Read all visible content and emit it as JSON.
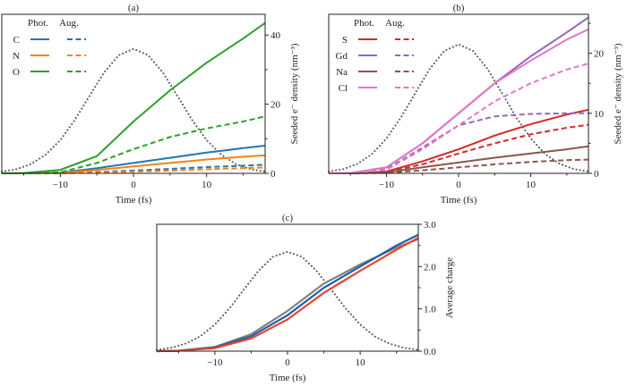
{
  "chart_data": [
    {
      "type": "line",
      "title": "(a)",
      "xlabel": "Time (fs)",
      "ylabel": "Seeded e⁻ density (nm⁻³)",
      "xlim": [
        -18,
        18
      ],
      "ylim": [
        0,
        46
      ],
      "xticks": [
        -10,
        0,
        10
      ],
      "xminor": [
        -15,
        -5,
        5,
        15
      ],
      "yticks": [
        0,
        20,
        40
      ],
      "yminor": [
        10,
        30
      ],
      "ytick_labels": [
        "0",
        "20",
        "40"
      ],
      "xtick_labels": [
        "−10",
        "0",
        "10"
      ],
      "yaxis_side": "right",
      "legend": {
        "placement": "top-left",
        "header_phot": "Phot.",
        "header_aug": "Aug."
      },
      "x": [
        -18,
        -15,
        -10,
        -5,
        0,
        5,
        10,
        15,
        18
      ],
      "series": [
        {
          "name": "C",
          "color": "#1f77b4",
          "phot": [
            0,
            0,
            0.2,
            1.5,
            3,
            4.5,
            6,
            7.3,
            8
          ],
          "aug": [
            0,
            0,
            0.05,
            0.4,
            0.8,
            1.3,
            1.8,
            2.2,
            2.5
          ]
        },
        {
          "name": "N",
          "color": "#ff7f0e",
          "phot": [
            0,
            0,
            0.1,
            1,
            2,
            3,
            4,
            4.8,
            5.2
          ],
          "aug": [
            0,
            0,
            0.03,
            0.2,
            0.5,
            0.8,
            1.2,
            1.5,
            1.7
          ]
        },
        {
          "name": "O",
          "color": "#2ca02c",
          "phot": [
            0,
            0.1,
            1,
            5,
            15,
            24,
            32,
            39,
            43.5
          ],
          "aug": [
            0,
            0,
            0.3,
            3,
            7,
            10.5,
            13,
            15,
            16.5
          ]
        }
      ],
      "pulse": {
        "x": [
          -18,
          -16,
          -14,
          -12,
          -10,
          -8,
          -6,
          -4,
          -2,
          0,
          2,
          4,
          6,
          8,
          10,
          12,
          14,
          16,
          18
        ],
        "y": [
          0.5,
          1.2,
          2.7,
          5.4,
          9.6,
          15.5,
          22.4,
          29.2,
          34.2,
          36,
          34.2,
          29.2,
          22.4,
          15.5,
          9.6,
          5.4,
          2.7,
          1.2,
          0.5
        ]
      }
    },
    {
      "type": "line",
      "title": "(b)",
      "xlabel": "Time (fs)",
      "ylabel": "Seeded e⁻ density (nm⁻³)",
      "xlim": [
        -18,
        18
      ],
      "ylim": [
        0,
        26.5
      ],
      "xticks": [
        -10,
        0,
        10
      ],
      "xminor": [
        -15,
        -5,
        5,
        15
      ],
      "yticks": [
        0,
        10,
        20
      ],
      "yminor": [
        5,
        15,
        25
      ],
      "ytick_labels": [
        "0",
        "10",
        "20"
      ],
      "xtick_labels": [
        "−10",
        "0",
        "10"
      ],
      "yaxis_side": "right",
      "legend": {
        "placement": "top-left",
        "header_phot": "Phot.",
        "header_aug": "Aug."
      },
      "x": [
        -18,
        -15,
        -10,
        -5,
        0,
        5,
        10,
        15,
        18
      ],
      "series": [
        {
          "name": "S",
          "color": "#d62728",
          "phot": [
            0,
            0,
            0.3,
            2,
            4,
            6.3,
            8.2,
            9.8,
            10.6
          ],
          "aug": [
            0,
            0,
            0.2,
            1.5,
            3.3,
            5,
            6.5,
            7.6,
            8.1
          ]
        },
        {
          "name": "Gd",
          "color": "#9467bd",
          "phot": [
            0,
            0.05,
            1,
            5,
            10,
            15,
            19.5,
            23.5,
            26
          ],
          "aug": [
            0,
            0.03,
            0.7,
            4.3,
            8,
            9.5,
            9.9,
            10,
            10
          ]
        },
        {
          "name": "Na",
          "color": "#8c564b",
          "phot": [
            0,
            0,
            0.15,
            1,
            1.8,
            2.6,
            3.3,
            4,
            4.5
          ],
          "aug": [
            0,
            0,
            0.08,
            0.5,
            1,
            1.5,
            1.9,
            2.2,
            2.3
          ]
        },
        {
          "name": "Cl",
          "color": "#e377c2",
          "phot": [
            0,
            0.05,
            1,
            5,
            10,
            15,
            18.8,
            22.3,
            24
          ],
          "aug": [
            0,
            0.03,
            0.6,
            4,
            8,
            12,
            15,
            17.3,
            18.3
          ]
        }
      ],
      "pulse": {
        "x": [
          -18,
          -16,
          -14,
          -12,
          -10,
          -8,
          -6,
          -4,
          -2,
          0,
          2,
          4,
          6,
          8,
          10,
          12,
          14,
          16,
          18
        ],
        "y": [
          0.3,
          0.7,
          1.6,
          3.2,
          5.8,
          9.3,
          13.4,
          17.4,
          20.4,
          21.5,
          20.4,
          17.4,
          13.4,
          9.3,
          5.8,
          3.2,
          1.6,
          0.7,
          0.3
        ]
      }
    },
    {
      "type": "line",
      "title": "(c)",
      "xlabel": "Time (fs)",
      "ylabel": "Average charge",
      "xlim": [
        -18,
        18
      ],
      "ylim": [
        0,
        3
      ],
      "xticks": [
        -10,
        0,
        10
      ],
      "xminor": [
        -15,
        -5,
        5,
        15
      ],
      "yticks": [
        0,
        1,
        2,
        3
      ],
      "yminor": [
        0.5,
        1.5,
        2.5
      ],
      "ytick_labels": [
        "0.0",
        "1.0",
        "2.0",
        "3.0"
      ],
      "xtick_labels": [
        "−10",
        "0",
        "10"
      ],
      "yaxis_side": "right",
      "x": [
        -18,
        -15,
        -10,
        -5,
        0,
        5,
        10,
        15,
        18
      ],
      "series": [
        {
          "color": "#808080",
          "values": [
            0,
            0.01,
            0.1,
            0.4,
            0.95,
            1.6,
            2.05,
            2.45,
            2.65
          ]
        },
        {
          "color": "#1f5fa8",
          "values": [
            0,
            0.01,
            0.09,
            0.35,
            0.85,
            1.5,
            2.0,
            2.5,
            2.75
          ]
        },
        {
          "color": "#e8452c",
          "values": [
            0,
            0.01,
            0.07,
            0.3,
            0.75,
            1.38,
            1.9,
            2.4,
            2.68
          ]
        }
      ],
      "pulse": {
        "x": [
          -18,
          -16,
          -14,
          -12,
          -10,
          -8,
          -6,
          -4,
          -2,
          0,
          2,
          4,
          6,
          8,
          10,
          12,
          14,
          16,
          18
        ],
        "y": [
          0.03,
          0.08,
          0.18,
          0.35,
          0.63,
          1.01,
          1.46,
          1.9,
          2.23,
          2.35,
          2.23,
          1.9,
          1.46,
          1.01,
          0.63,
          0.35,
          0.18,
          0.08,
          0.03
        ]
      }
    }
  ]
}
